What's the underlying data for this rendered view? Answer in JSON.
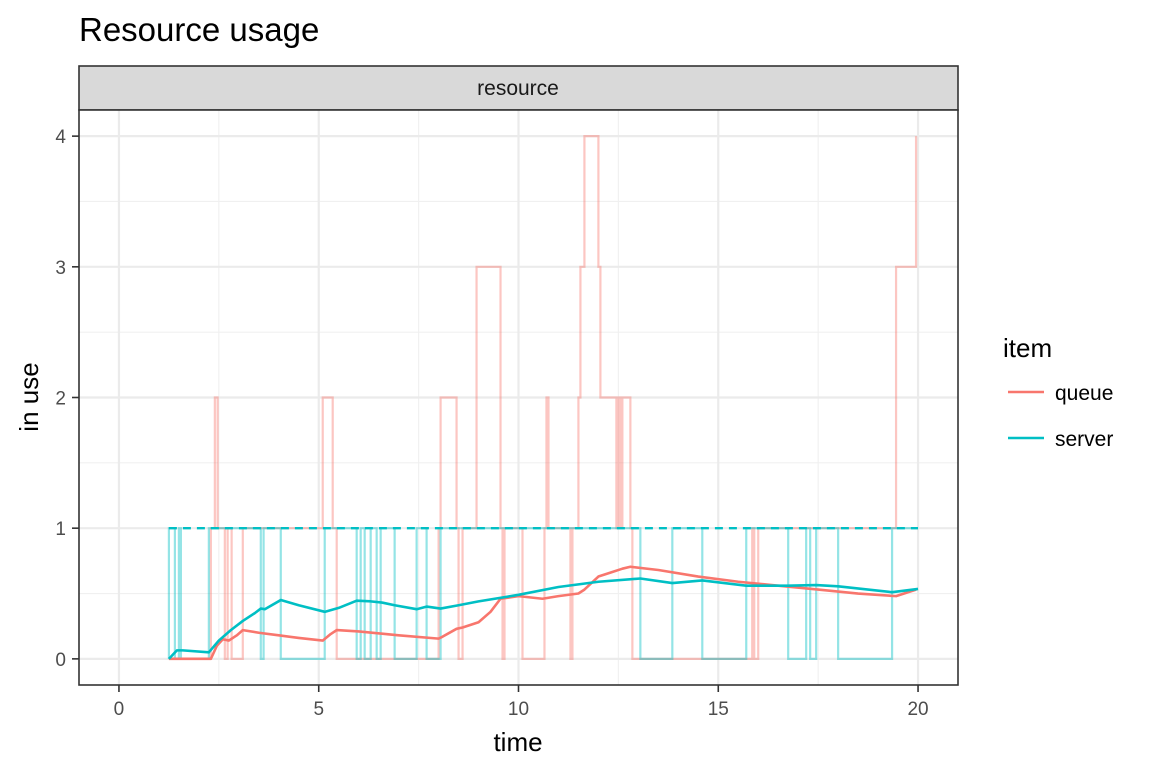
{
  "chart_data": {
    "type": "line",
    "title": "Resource usage",
    "facet_label": "resource",
    "xlabel": "time",
    "ylabel": "in use",
    "xlim": [
      -1,
      21
    ],
    "ylim": [
      -0.2,
      4.2
    ],
    "x_ticks": [
      0,
      5,
      10,
      15,
      20
    ],
    "x_tick_labels": [
      "0",
      "5",
      "10",
      "15",
      "20"
    ],
    "y_ticks": [
      0,
      1,
      2,
      3,
      4
    ],
    "y_tick_labels": [
      "0",
      "1",
      "2",
      "3",
      "4"
    ],
    "x_minor_ticks": [
      2.5,
      7.5,
      12.5,
      17.5
    ],
    "y_minor_ticks": [
      0.5,
      1.5,
      2.5,
      3.5
    ],
    "grid": true,
    "legend": {
      "title": "item",
      "position": "right",
      "entries": [
        {
          "label": "queue",
          "color": "#F8766D"
        },
        {
          "label": "server",
          "color": "#00BFC4"
        }
      ]
    },
    "series": [
      {
        "name": "queue",
        "color": "#F8766D",
        "step": [
          [
            1.25,
            0
          ],
          [
            2.3,
            0
          ],
          [
            2.3,
            1
          ],
          [
            2.4,
            1
          ],
          [
            2.4,
            2
          ],
          [
            2.47,
            2
          ],
          [
            2.47,
            1
          ],
          [
            2.65,
            1
          ],
          [
            2.65,
            0
          ],
          [
            2.72,
            0
          ],
          [
            2.72,
            1
          ],
          [
            2.82,
            1
          ],
          [
            2.82,
            0
          ],
          [
            3.1,
            0
          ],
          [
            3.1,
            1
          ],
          [
            5.1,
            1
          ],
          [
            5.1,
            2
          ],
          [
            5.35,
            2
          ],
          [
            5.35,
            1
          ],
          [
            5.45,
            1
          ],
          [
            5.45,
            0
          ],
          [
            8.0,
            0
          ],
          [
            8.0,
            1
          ],
          [
            8.05,
            1
          ],
          [
            8.05,
            2
          ],
          [
            8.45,
            2
          ],
          [
            8.45,
            1
          ],
          [
            8.5,
            1
          ],
          [
            8.5,
            0
          ],
          [
            8.6,
            0
          ],
          [
            8.6,
            1
          ],
          [
            8.95,
            1
          ],
          [
            8.95,
            3
          ],
          [
            9.55,
            3
          ],
          [
            9.55,
            1
          ],
          [
            9.6,
            1
          ],
          [
            9.6,
            0
          ],
          [
            9.65,
            0
          ],
          [
            9.65,
            1
          ],
          [
            10.1,
            1
          ],
          [
            10.1,
            0
          ],
          [
            10.65,
            0
          ],
          [
            10.65,
            1
          ],
          [
            10.7,
            1
          ],
          [
            10.7,
            2
          ],
          [
            10.75,
            2
          ],
          [
            10.75,
            1
          ],
          [
            11.3,
            1
          ],
          [
            11.3,
            0
          ],
          [
            11.35,
            0
          ],
          [
            11.35,
            1
          ],
          [
            11.5,
            1
          ],
          [
            11.5,
            2
          ],
          [
            11.55,
            2
          ],
          [
            11.55,
            3
          ],
          [
            11.65,
            3
          ],
          [
            11.65,
            4
          ],
          [
            12.0,
            4
          ],
          [
            12.0,
            3
          ],
          [
            12.05,
            3
          ],
          [
            12.05,
            2
          ],
          [
            12.45,
            2
          ],
          [
            12.45,
            1
          ],
          [
            12.5,
            1
          ],
          [
            12.5,
            2
          ],
          [
            12.55,
            2
          ],
          [
            12.55,
            1
          ],
          [
            12.6,
            1
          ],
          [
            12.6,
            2
          ],
          [
            12.8,
            2
          ],
          [
            12.8,
            1
          ],
          [
            12.85,
            1
          ],
          [
            12.85,
            0
          ],
          [
            15.85,
            0
          ],
          [
            15.85,
            1
          ],
          [
            15.9,
            1
          ],
          [
            15.9,
            0
          ],
          [
            16.0,
            0
          ],
          [
            16.0,
            1
          ],
          [
            19.45,
            1
          ],
          [
            19.45,
            3
          ],
          [
            19.95,
            3
          ],
          [
            19.95,
            4
          ]
        ],
        "average": [
          [
            1.25,
            0
          ],
          [
            2.3,
            0
          ],
          [
            2.45,
            0.1
          ],
          [
            2.6,
            0.15
          ],
          [
            2.75,
            0.14
          ],
          [
            2.95,
            0.18
          ],
          [
            3.1,
            0.22
          ],
          [
            3.5,
            0.2
          ],
          [
            4.0,
            0.18
          ],
          [
            4.5,
            0.16
          ],
          [
            5.1,
            0.14
          ],
          [
            5.3,
            0.19
          ],
          [
            5.45,
            0.22
          ],
          [
            6.0,
            0.21
          ],
          [
            7.0,
            0.18
          ],
          [
            8.0,
            0.155
          ],
          [
            8.1,
            0.17
          ],
          [
            8.45,
            0.23
          ],
          [
            8.6,
            0.24
          ],
          [
            9.0,
            0.28
          ],
          [
            9.3,
            0.36
          ],
          [
            9.55,
            0.46
          ],
          [
            10.0,
            0.48
          ],
          [
            10.6,
            0.46
          ],
          [
            11.0,
            0.48
          ],
          [
            11.5,
            0.5
          ],
          [
            11.65,
            0.53
          ],
          [
            12.0,
            0.63
          ],
          [
            12.3,
            0.66
          ],
          [
            12.6,
            0.69
          ],
          [
            12.8,
            0.705
          ],
          [
            13.5,
            0.68
          ],
          [
            14.5,
            0.63
          ],
          [
            15.5,
            0.59
          ],
          [
            16.5,
            0.56
          ],
          [
            17.5,
            0.53
          ],
          [
            18.5,
            0.5
          ],
          [
            19.45,
            0.48
          ],
          [
            19.95,
            0.53
          ]
        ]
      },
      {
        "name": "server",
        "color": "#00BFC4",
        "step": [
          [
            1.25,
            0
          ],
          [
            1.25,
            1
          ],
          [
            1.4,
            1
          ],
          [
            1.4,
            0
          ],
          [
            1.5,
            0
          ],
          [
            1.5,
            1
          ],
          [
            1.55,
            1
          ],
          [
            1.55,
            0
          ],
          [
            2.25,
            0
          ],
          [
            2.25,
            1
          ],
          [
            3.55,
            1
          ],
          [
            3.55,
            0
          ],
          [
            3.62,
            0
          ],
          [
            3.62,
            1
          ],
          [
            4.05,
            1
          ],
          [
            4.05,
            0
          ],
          [
            5.15,
            0
          ],
          [
            5.15,
            1
          ],
          [
            5.95,
            1
          ],
          [
            5.95,
            0
          ],
          [
            6.05,
            0
          ],
          [
            6.05,
            1
          ],
          [
            6.15,
            1
          ],
          [
            6.15,
            0
          ],
          [
            6.3,
            0
          ],
          [
            6.3,
            1
          ],
          [
            6.45,
            1
          ],
          [
            6.45,
            0
          ],
          [
            6.55,
            0
          ],
          [
            6.55,
            1
          ],
          [
            6.9,
            1
          ],
          [
            6.9,
            0
          ],
          [
            7.45,
            0
          ],
          [
            7.45,
            1
          ],
          [
            7.7,
            1
          ],
          [
            7.7,
            0
          ],
          [
            8.05,
            0
          ],
          [
            8.05,
            1
          ],
          [
            13.05,
            1
          ],
          [
            13.05,
            0
          ],
          [
            13.85,
            0
          ],
          [
            13.85,
            1
          ],
          [
            14.6,
            1
          ],
          [
            14.6,
            0
          ],
          [
            15.7,
            0
          ],
          [
            15.7,
            1
          ],
          [
            16.75,
            1
          ],
          [
            16.75,
            0
          ],
          [
            17.2,
            0
          ],
          [
            17.2,
            1
          ],
          [
            17.3,
            1
          ],
          [
            17.3,
            0
          ],
          [
            17.45,
            0
          ],
          [
            17.45,
            1
          ],
          [
            18.0,
            1
          ],
          [
            18.0,
            0
          ],
          [
            19.35,
            0
          ],
          [
            19.35,
            1
          ],
          [
            20.0,
            1
          ]
        ],
        "average": [
          [
            1.25,
            0
          ],
          [
            1.45,
            0.065
          ],
          [
            1.6,
            0.065
          ],
          [
            2.25,
            0.05
          ],
          [
            2.5,
            0.14
          ],
          [
            2.8,
            0.22
          ],
          [
            3.1,
            0.29
          ],
          [
            3.4,
            0.35
          ],
          [
            3.55,
            0.385
          ],
          [
            3.65,
            0.38
          ],
          [
            4.05,
            0.45
          ],
          [
            4.5,
            0.41
          ],
          [
            5.15,
            0.36
          ],
          [
            5.5,
            0.39
          ],
          [
            5.95,
            0.445
          ],
          [
            6.3,
            0.44
          ],
          [
            6.6,
            0.43
          ],
          [
            6.9,
            0.41
          ],
          [
            7.45,
            0.38
          ],
          [
            7.7,
            0.4
          ],
          [
            8.05,
            0.385
          ],
          [
            8.5,
            0.41
          ],
          [
            9.0,
            0.44
          ],
          [
            10.0,
            0.49
          ],
          [
            11.0,
            0.55
          ],
          [
            12.0,
            0.59
          ],
          [
            13.05,
            0.615
          ],
          [
            13.85,
            0.58
          ],
          [
            14.6,
            0.6
          ],
          [
            15.7,
            0.56
          ],
          [
            16.75,
            0.56
          ],
          [
            17.45,
            0.565
          ],
          [
            18.0,
            0.555
          ],
          [
            19.35,
            0.51
          ],
          [
            20.0,
            0.535
          ]
        ]
      }
    ],
    "capacity_line": {
      "series": "server",
      "y": 1,
      "x_start": 1.25,
      "x_end": 20.0,
      "style": "dashed",
      "color": "#00BFC4"
    }
  }
}
